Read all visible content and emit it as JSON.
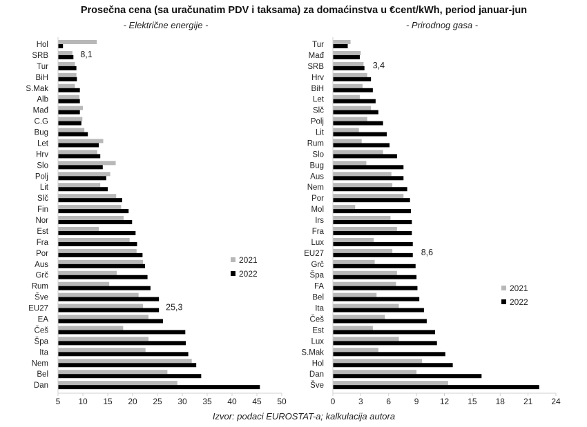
{
  "title": "Prosečna cena (sa uračunatim PDV i taksama) za domaćinstva u €cent/kWh, period januar-jun",
  "source": "Izvor: podaci EUROSTAT-a; kalkulacija autora",
  "colors": {
    "s2021": "#b8b8b8",
    "s2022": "#000000"
  },
  "chart_data": [
    {
      "type": "bar",
      "orientation": "horizontal",
      "subtitle": "- Električne energije -",
      "categories": [
        "Hol",
        "SRB",
        "Tur",
        "BiH",
        "S.Mak",
        "Alb",
        "Mađ",
        "C.G",
        "Bug",
        "Let",
        "Hrv",
        "Slo",
        "Polj",
        "Lit",
        "Slč",
        "Fin",
        "Nor",
        "Est",
        "Fra",
        "Por",
        "Aus",
        "Grč",
        "Rum",
        "Šve",
        "EU27",
        "EA",
        "Češ",
        "Špa",
        "Ita",
        "Nem",
        "Bel",
        "Dan"
      ],
      "series": [
        {
          "name": "2021",
          "values": [
            12.8,
            7.9,
            8.4,
            8.7,
            8.4,
            9.3,
            10.0,
            9.9,
            10.3,
            14.1,
            12.9,
            16.6,
            15.5,
            13.5,
            16.7,
            17.7,
            18.2,
            13.2,
            19.4,
            20.8,
            22.1,
            16.8,
            15.3,
            21.2,
            22.1,
            23.2,
            18.1,
            23.2,
            22.6,
            31.9,
            27.0,
            29.0
          ]
        },
        {
          "name": "2022",
          "values": [
            6.0,
            8.1,
            8.7,
            8.8,
            9.4,
            9.4,
            9.4,
            9.7,
            11.0,
            13.2,
            13.5,
            14.0,
            14.7,
            15.0,
            17.9,
            19.2,
            19.9,
            20.6,
            20.9,
            22.0,
            22.5,
            23.0,
            23.6,
            25.3,
            25.3,
            26.1,
            30.6,
            30.7,
            31.2,
            32.8,
            33.8,
            45.6
          ]
        }
      ],
      "annotations": [
        {
          "category": "SRB",
          "text": "8,1"
        },
        {
          "category": "EU27",
          "text": "25,3"
        }
      ],
      "xlim": [
        5,
        50
      ],
      "xticks": [
        "5",
        "10",
        "15",
        "20",
        "25",
        "30",
        "35",
        "40",
        "45",
        "50"
      ],
      "legend": [
        "2021",
        "2022"
      ],
      "legend_position": "right-middle",
      "grid": false
    },
    {
      "type": "bar",
      "orientation": "horizontal",
      "subtitle": "- Prirodnog gasa -",
      "categories": [
        "Tur",
        "Mađ",
        "SRB",
        "Hrv",
        "BiH",
        "Let",
        "Slč",
        "Polj",
        "Lit",
        "Rum",
        "Slo",
        "Bug",
        "Aus",
        "Nem",
        "Por",
        "Mol",
        "Irs",
        "Fra",
        "Lux",
        "EU27",
        "Grč",
        "Špa",
        "FA",
        "Bel",
        "Ita",
        "Češ",
        "Est",
        "Lux",
        "S.Mak",
        "Hol",
        "Dan",
        "Šve"
      ],
      "series": [
        {
          "name": "2021",
          "values": [
            1.9,
            3.0,
            3.3,
            3.7,
            3.2,
            2.9,
            4.1,
            3.7,
            2.8,
            3.1,
            5.4,
            3.6,
            6.3,
            6.4,
            7.6,
            2.4,
            6.2,
            6.9,
            4.4,
            6.4,
            4.5,
            6.9,
            6.8,
            4.7,
            7.1,
            5.6,
            4.3,
            7.1,
            4.9,
            9.6,
            9.0,
            12.4
          ]
        },
        {
          "name": "2022",
          "values": [
            1.6,
            2.9,
            3.4,
            4.1,
            4.3,
            4.6,
            4.9,
            5.4,
            5.8,
            6.1,
            6.9,
            7.6,
            7.6,
            8.0,
            8.3,
            8.4,
            8.5,
            8.5,
            8.6,
            8.6,
            8.9,
            9.0,
            9.1,
            9.3,
            9.8,
            10.1,
            11.0,
            11.2,
            12.1,
            12.9,
            16.0,
            22.2
          ]
        }
      ],
      "annotations": [
        {
          "category": "SRB",
          "text": "3,4"
        },
        {
          "category": "EU27",
          "text": "8,6"
        }
      ],
      "xlim": [
        0,
        24
      ],
      "xticks": [
        "0",
        "3",
        "6",
        "9",
        "12",
        "15",
        "18",
        "21",
        "24"
      ],
      "legend": [
        "2021",
        "2022"
      ],
      "legend_position": "right-lower",
      "grid": false
    }
  ]
}
